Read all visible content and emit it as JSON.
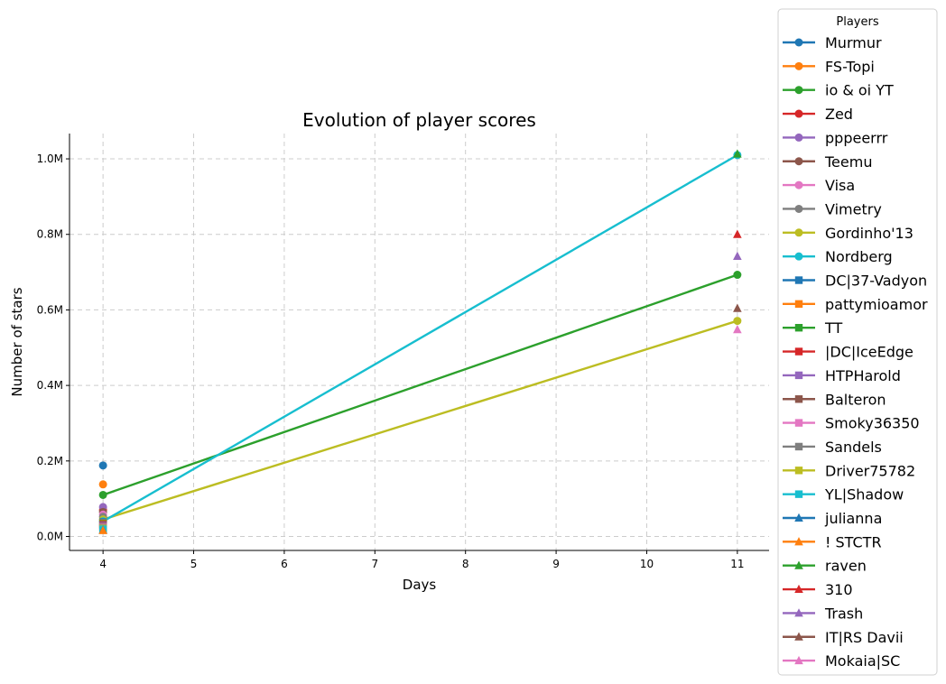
{
  "chart_data": {
    "type": "line",
    "title": "Evolution of player scores",
    "xlabel": "Days",
    "ylabel": "Number of stars",
    "xlim": [
      3.63,
      11.35
    ],
    "ylim": [
      -0.037,
      1.067
    ],
    "x_ticks": [
      4,
      5,
      6,
      7,
      8,
      9,
      10,
      11
    ],
    "y_ticks": [
      0.0,
      0.2,
      0.4,
      0.6,
      0.8,
      1.0
    ],
    "y_tick_labels": [
      "0.0M",
      "0.2M",
      "0.4M",
      "0.6M",
      "0.8M",
      "1.0M"
    ],
    "y_unit": "millions of stars",
    "grid": true,
    "legend": {
      "title": "Players",
      "placement": "outside-right"
    },
    "series": [
      {
        "name": "Murmur",
        "color": "#1f77b4",
        "marker": "circle",
        "x": [
          4
        ],
        "y": [
          0.188
        ]
      },
      {
        "name": "FS-Topi",
        "color": "#ff7f0e",
        "marker": "circle",
        "x": [
          4
        ],
        "y": [
          0.138
        ]
      },
      {
        "name": "io & oi YT",
        "color": "#2ca02c",
        "marker": "circle",
        "x": [
          4,
          11
        ],
        "y": [
          0.11,
          0.693
        ]
      },
      {
        "name": "Zed",
        "color": "#d62728",
        "marker": "circle",
        "x": [
          4
        ],
        "y": [
          0.07
        ]
      },
      {
        "name": "pppeerrr",
        "color": "#9467bd",
        "marker": "circle",
        "x": [
          4
        ],
        "y": [
          0.078
        ]
      },
      {
        "name": "Teemu",
        "color": "#8c564b",
        "marker": "circle",
        "x": [
          4
        ],
        "y": [
          0.065
        ]
      },
      {
        "name": "Visa",
        "color": "#e377c2",
        "marker": "circle",
        "x": [
          4
        ],
        "y": [
          0.058
        ]
      },
      {
        "name": "Vimetry",
        "color": "#7f7f7f",
        "marker": "circle",
        "x": [
          4
        ],
        "y": [
          0.052
        ]
      },
      {
        "name": "Gordinho'13",
        "color": "#bcbd22",
        "marker": "circle",
        "x": [
          4,
          11
        ],
        "y": [
          0.045,
          0.571
        ]
      },
      {
        "name": "Nordberg",
        "color": "#17becf",
        "marker": "circle",
        "x": [
          4,
          11
        ],
        "y": [
          0.04,
          1.01
        ]
      },
      {
        "name": "DC|37-Vadyon",
        "color": "#1f77b4",
        "marker": "square",
        "x": [
          4
        ],
        "y": [
          0.038
        ]
      },
      {
        "name": "pattymioamor",
        "color": "#ff7f0e",
        "marker": "square",
        "x": [
          4
        ],
        "y": [
          0.035
        ]
      },
      {
        "name": "TT",
        "color": "#2ca02c",
        "marker": "square",
        "x": [
          4
        ],
        "y": [
          0.033
        ]
      },
      {
        "name": "|DC|IceEdge",
        "color": "#d62728",
        "marker": "square",
        "x": [
          4
        ],
        "y": [
          0.031
        ]
      },
      {
        "name": "HTPHarold",
        "color": "#9467bd",
        "marker": "square",
        "x": [
          4
        ],
        "y": [
          0.029
        ]
      },
      {
        "name": "Balteron",
        "color": "#8c564b",
        "marker": "square",
        "x": [
          4
        ],
        "y": [
          0.027
        ]
      },
      {
        "name": "Smoky36350",
        "color": "#e377c2",
        "marker": "square",
        "x": [
          4
        ],
        "y": [
          0.025
        ]
      },
      {
        "name": "Sandels",
        "color": "#7f7f7f",
        "marker": "square",
        "x": [
          4
        ],
        "y": [
          0.023
        ]
      },
      {
        "name": "Driver75782",
        "color": "#bcbd22",
        "marker": "square",
        "x": [
          4
        ],
        "y": [
          0.021
        ]
      },
      {
        "name": "YL|Shadow",
        "color": "#17becf",
        "marker": "square",
        "x": [
          4
        ],
        "y": [
          0.019
        ]
      },
      {
        "name": "julianna",
        "color": "#1f77b4",
        "marker": "triangle",
        "x": [
          4
        ],
        "y": [
          0.017
        ]
      },
      {
        "name": "! STCTR",
        "color": "#ff7f0e",
        "marker": "triangle",
        "x": [
          4
        ],
        "y": [
          0.016
        ]
      },
      {
        "name": "raven",
        "color": "#2ca02c",
        "marker": "triangle",
        "x": [
          11
        ],
        "y": [
          1.013
        ]
      },
      {
        "name": "310",
        "color": "#d62728",
        "marker": "triangle",
        "x": [
          11
        ],
        "y": [
          0.8
        ]
      },
      {
        "name": "Trash",
        "color": "#9467bd",
        "marker": "triangle",
        "x": [
          11
        ],
        "y": [
          0.742
        ]
      },
      {
        "name": "IT|RS Davii",
        "color": "#8c564b",
        "marker": "triangle",
        "x": [
          11
        ],
        "y": [
          0.604
        ]
      },
      {
        "name": "Mokaia|SC",
        "color": "#e377c2",
        "marker": "triangle",
        "x": [
          11
        ],
        "y": [
          0.548
        ]
      }
    ]
  }
}
